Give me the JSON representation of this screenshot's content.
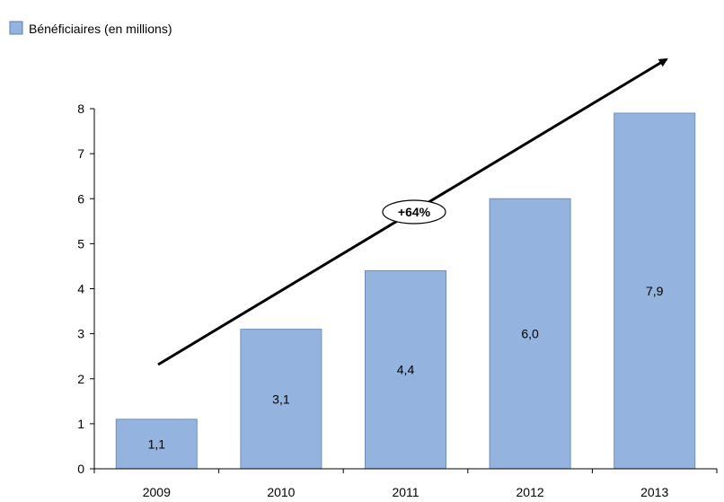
{
  "chart_data": {
    "type": "bar",
    "categories": [
      "2009",
      "2010",
      "2011",
      "2012",
      "2013"
    ],
    "series": [
      {
        "name": "Bénéficiaires (en millions)",
        "values": [
          1.1,
          3.1,
          4.4,
          6.0,
          7.9
        ],
        "value_labels": [
          "1,1",
          "3,1",
          "4,4",
          "6,0",
          "7,9"
        ],
        "color": "#94b3df"
      }
    ],
    "ylim": [
      0,
      8
    ],
    "yticks": [
      0,
      1,
      2,
      3,
      4,
      5,
      6,
      7,
      8
    ],
    "grid": false,
    "legend": "top-left",
    "annotation": {
      "text": "+64%",
      "kind": "growth-arrow"
    }
  }
}
